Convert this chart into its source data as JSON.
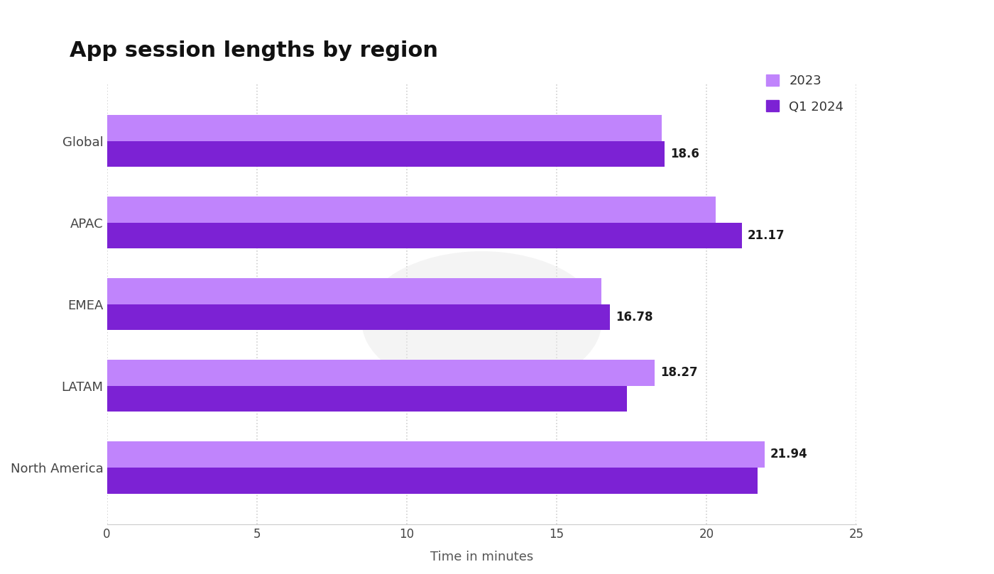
{
  "title": "App session lengths by region",
  "regions": [
    "Global",
    "APAC",
    "EMEA",
    "LATAM",
    "North America"
  ],
  "values_2023": [
    18.5,
    20.3,
    16.5,
    18.27,
    21.94
  ],
  "values_q1_2024": [
    18.6,
    21.17,
    16.78,
    17.35,
    21.7
  ],
  "bar_labels": {
    "Global": {
      "value": 18.6,
      "bar": "q1"
    },
    "APAC": {
      "value": 21.17,
      "bar": "q1"
    },
    "EMEA": {
      "value": 16.78,
      "bar": "q1"
    },
    "LATAM": {
      "value": 18.27,
      "bar": "2023"
    },
    "North America": {
      "value": 21.94,
      "bar": "2023"
    }
  },
  "color_2023": "#c084fc",
  "color_q1_2024": "#7c22d4",
  "xlabel": "Time in minutes",
  "xlim": [
    0,
    25
  ],
  "xticks": [
    0,
    5,
    10,
    15,
    20,
    25
  ],
  "background_color": "#ffffff",
  "title_fontsize": 22,
  "legend_labels": [
    "2023",
    "Q1 2024"
  ],
  "bar_height": 0.32,
  "grid_color": "#d0d0d0"
}
